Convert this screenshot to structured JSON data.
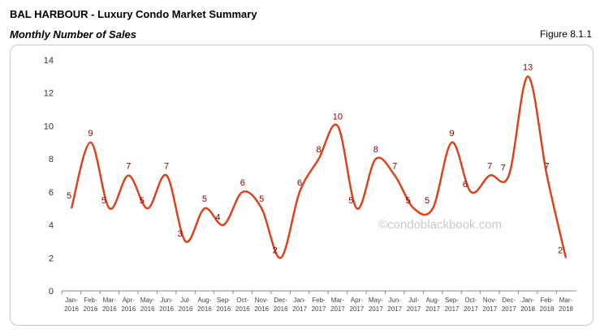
{
  "header": {
    "title": "BAL HARBOUR - Luxury Condo Market Summary",
    "subtitle": "Monthly Number of Sales",
    "figure": "Figure 8.1.1"
  },
  "chart_data": {
    "type": "line",
    "title": "Monthly Number of Sales",
    "xlabel": "",
    "ylabel": "",
    "ylim": [
      0,
      14
    ],
    "yticks": [
      0,
      2,
      4,
      6,
      8,
      10,
      12,
      14
    ],
    "grid": false,
    "line_color": "#d9431e",
    "label_color": "#8b0000",
    "watermark": "©condoblackbook.com",
    "categories": [
      [
        "Jan-",
        "2016"
      ],
      [
        "Feb-",
        "2016"
      ],
      [
        "Mar-",
        "2016"
      ],
      [
        "Apr-",
        "2016"
      ],
      [
        "May-",
        "2016"
      ],
      [
        "Jun-",
        "2016"
      ],
      [
        "Jul-",
        "2016"
      ],
      [
        "Aug-",
        "2016"
      ],
      [
        "Sep-",
        "2016"
      ],
      [
        "Oct-",
        "2016"
      ],
      [
        "Nov-",
        "2016"
      ],
      [
        "Dec-",
        "2016"
      ],
      [
        "Jan-",
        "2017"
      ],
      [
        "Feb-",
        "2017"
      ],
      [
        "Mar-",
        "2017"
      ],
      [
        "Apr-",
        "2017"
      ],
      [
        "May-",
        "2017"
      ],
      [
        "Jun-",
        "2017"
      ],
      [
        "Jul-",
        "2017"
      ],
      [
        "Aug-",
        "2017"
      ],
      [
        "Sep-",
        "2017"
      ],
      [
        "Oct-",
        "2017"
      ],
      [
        "Nov-",
        "2017"
      ],
      [
        "Dec-",
        "2017"
      ],
      [
        "Jan-",
        "2018"
      ],
      [
        "Feb-",
        "2018"
      ],
      [
        "Mar-",
        "2018"
      ]
    ],
    "values": [
      5,
      9,
      5,
      7,
      5,
      7,
      3,
      5,
      4,
      6,
      5,
      2,
      6,
      8,
      10,
      5,
      8,
      7,
      5,
      5,
      9,
      6,
      7,
      7,
      13,
      7,
      2
    ]
  }
}
